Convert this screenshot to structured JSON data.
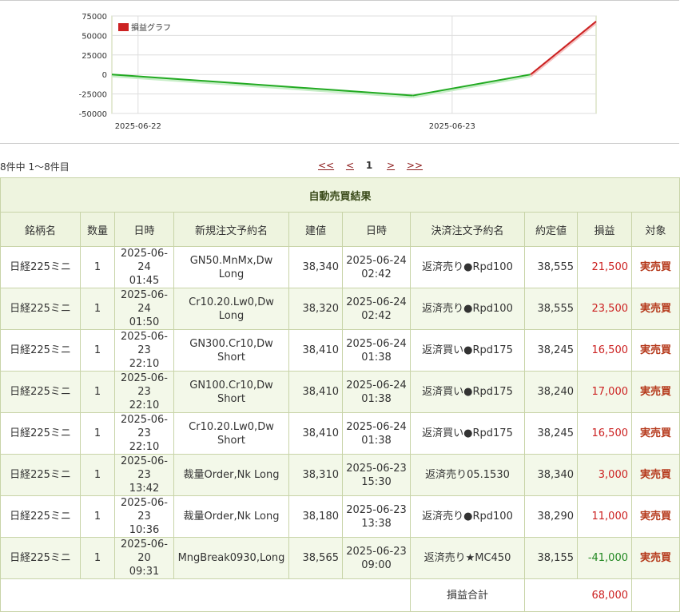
{
  "chart_data": {
    "type": "line",
    "legend": "損益グラフ",
    "legend_color": "#cc2222",
    "up_color": "#cc2222",
    "down_color": "#22aa22",
    "y_ticks": [
      "75000",
      "50000",
      "25000",
      "0",
      "-25000",
      "-50000"
    ],
    "ylim": [
      -50000,
      75000
    ],
    "x_tick_labels": [
      "2025-06-22",
      "2025-06-23"
    ],
    "points": [
      {
        "x": "2025-06-21 22:00",
        "y": 0
      },
      {
        "x": "2025-06-22 21:00",
        "y": -27000
      },
      {
        "x": "2025-06-23 06:00",
        "y": 0
      },
      {
        "x": "2025-06-23 11:00",
        "y": 68000
      }
    ],
    "grid": true
  },
  "pager": {
    "count_text": "8件中 1～8件目",
    "first": "<<",
    "prev": "<",
    "current": "1",
    "next": ">",
    "last": ">>"
  },
  "table": {
    "title": "自動売買結果",
    "headers": [
      "銘柄名",
      "数量",
      "日時",
      "新規注文予約名",
      "建値",
      "日時",
      "決済注文予約名",
      "約定値",
      "損益",
      "対象"
    ],
    "rows": [
      {
        "symbol": "日経225ミニ",
        "qty": "1",
        "open_date": "2025-06-24",
        "open_time": "01:45",
        "open_order": "GN50.MnMx,Dw Long",
        "open_price": "38,340",
        "close_date": "2025-06-24",
        "close_time": "02:42",
        "close_order": "返済売り●Rpd100",
        "close_price": "38,555",
        "pl": "21,500",
        "pl_sign": "pos",
        "target": "実売買"
      },
      {
        "symbol": "日経225ミニ",
        "qty": "1",
        "open_date": "2025-06-24",
        "open_time": "01:50",
        "open_order": "Cr10.20.Lw0,Dw Long",
        "open_price": "38,320",
        "close_date": "2025-06-24",
        "close_time": "02:42",
        "close_order": "返済売り●Rpd100",
        "close_price": "38,555",
        "pl": "23,500",
        "pl_sign": "pos",
        "target": "実売買"
      },
      {
        "symbol": "日経225ミニ",
        "qty": "1",
        "open_date": "2025-06-23",
        "open_time": "22:10",
        "open_order": "GN300.Cr10,Dw Short",
        "open_price": "38,410",
        "close_date": "2025-06-24",
        "close_time": "01:38",
        "close_order": "返済買い●Rpd175",
        "close_price": "38,245",
        "pl": "16,500",
        "pl_sign": "pos",
        "target": "実売買"
      },
      {
        "symbol": "日経225ミニ",
        "qty": "1",
        "open_date": "2025-06-23",
        "open_time": "22:10",
        "open_order": "GN100.Cr10,Dw Short",
        "open_price": "38,410",
        "close_date": "2025-06-24",
        "close_time": "01:38",
        "close_order": "返済買い●Rpd175",
        "close_price": "38,240",
        "pl": "17,000",
        "pl_sign": "pos",
        "target": "実売買"
      },
      {
        "symbol": "日経225ミニ",
        "qty": "1",
        "open_date": "2025-06-23",
        "open_time": "22:10",
        "open_order": "Cr10.20.Lw0,Dw Short",
        "open_price": "38,410",
        "close_date": "2025-06-24",
        "close_time": "01:38",
        "close_order": "返済買い●Rpd175",
        "close_price": "38,245",
        "pl": "16,500",
        "pl_sign": "pos",
        "target": "実売買"
      },
      {
        "symbol": "日経225ミニ",
        "qty": "1",
        "open_date": "2025-06-23",
        "open_time": "13:42",
        "open_order": "裁量Order,Nk Long",
        "open_price": "38,310",
        "close_date": "2025-06-23",
        "close_time": "15:30",
        "close_order": "返済売り05.1530",
        "close_price": "38,340",
        "pl": "3,000",
        "pl_sign": "pos",
        "target": "実売買"
      },
      {
        "symbol": "日経225ミニ",
        "qty": "1",
        "open_date": "2025-06-23",
        "open_time": "10:36",
        "open_order": "裁量Order,Nk Long",
        "open_price": "38,180",
        "close_date": "2025-06-23",
        "close_time": "13:38",
        "close_order": "返済売り●Rpd100",
        "close_price": "38,290",
        "pl": "11,000",
        "pl_sign": "pos",
        "target": "実売買"
      },
      {
        "symbol": "日経225ミニ",
        "qty": "1",
        "open_date": "2025-06-20",
        "open_time": "09:31",
        "open_order": "MngBreak0930,Long",
        "open_price": "38,565",
        "close_date": "2025-06-23",
        "close_time": "09:00",
        "close_order": "返済売り★MC450",
        "close_price": "38,155",
        "pl": "-41,000",
        "pl_sign": "neg",
        "target": "実売買"
      }
    ],
    "total_label": "損益合計",
    "total_value": "68,000"
  }
}
